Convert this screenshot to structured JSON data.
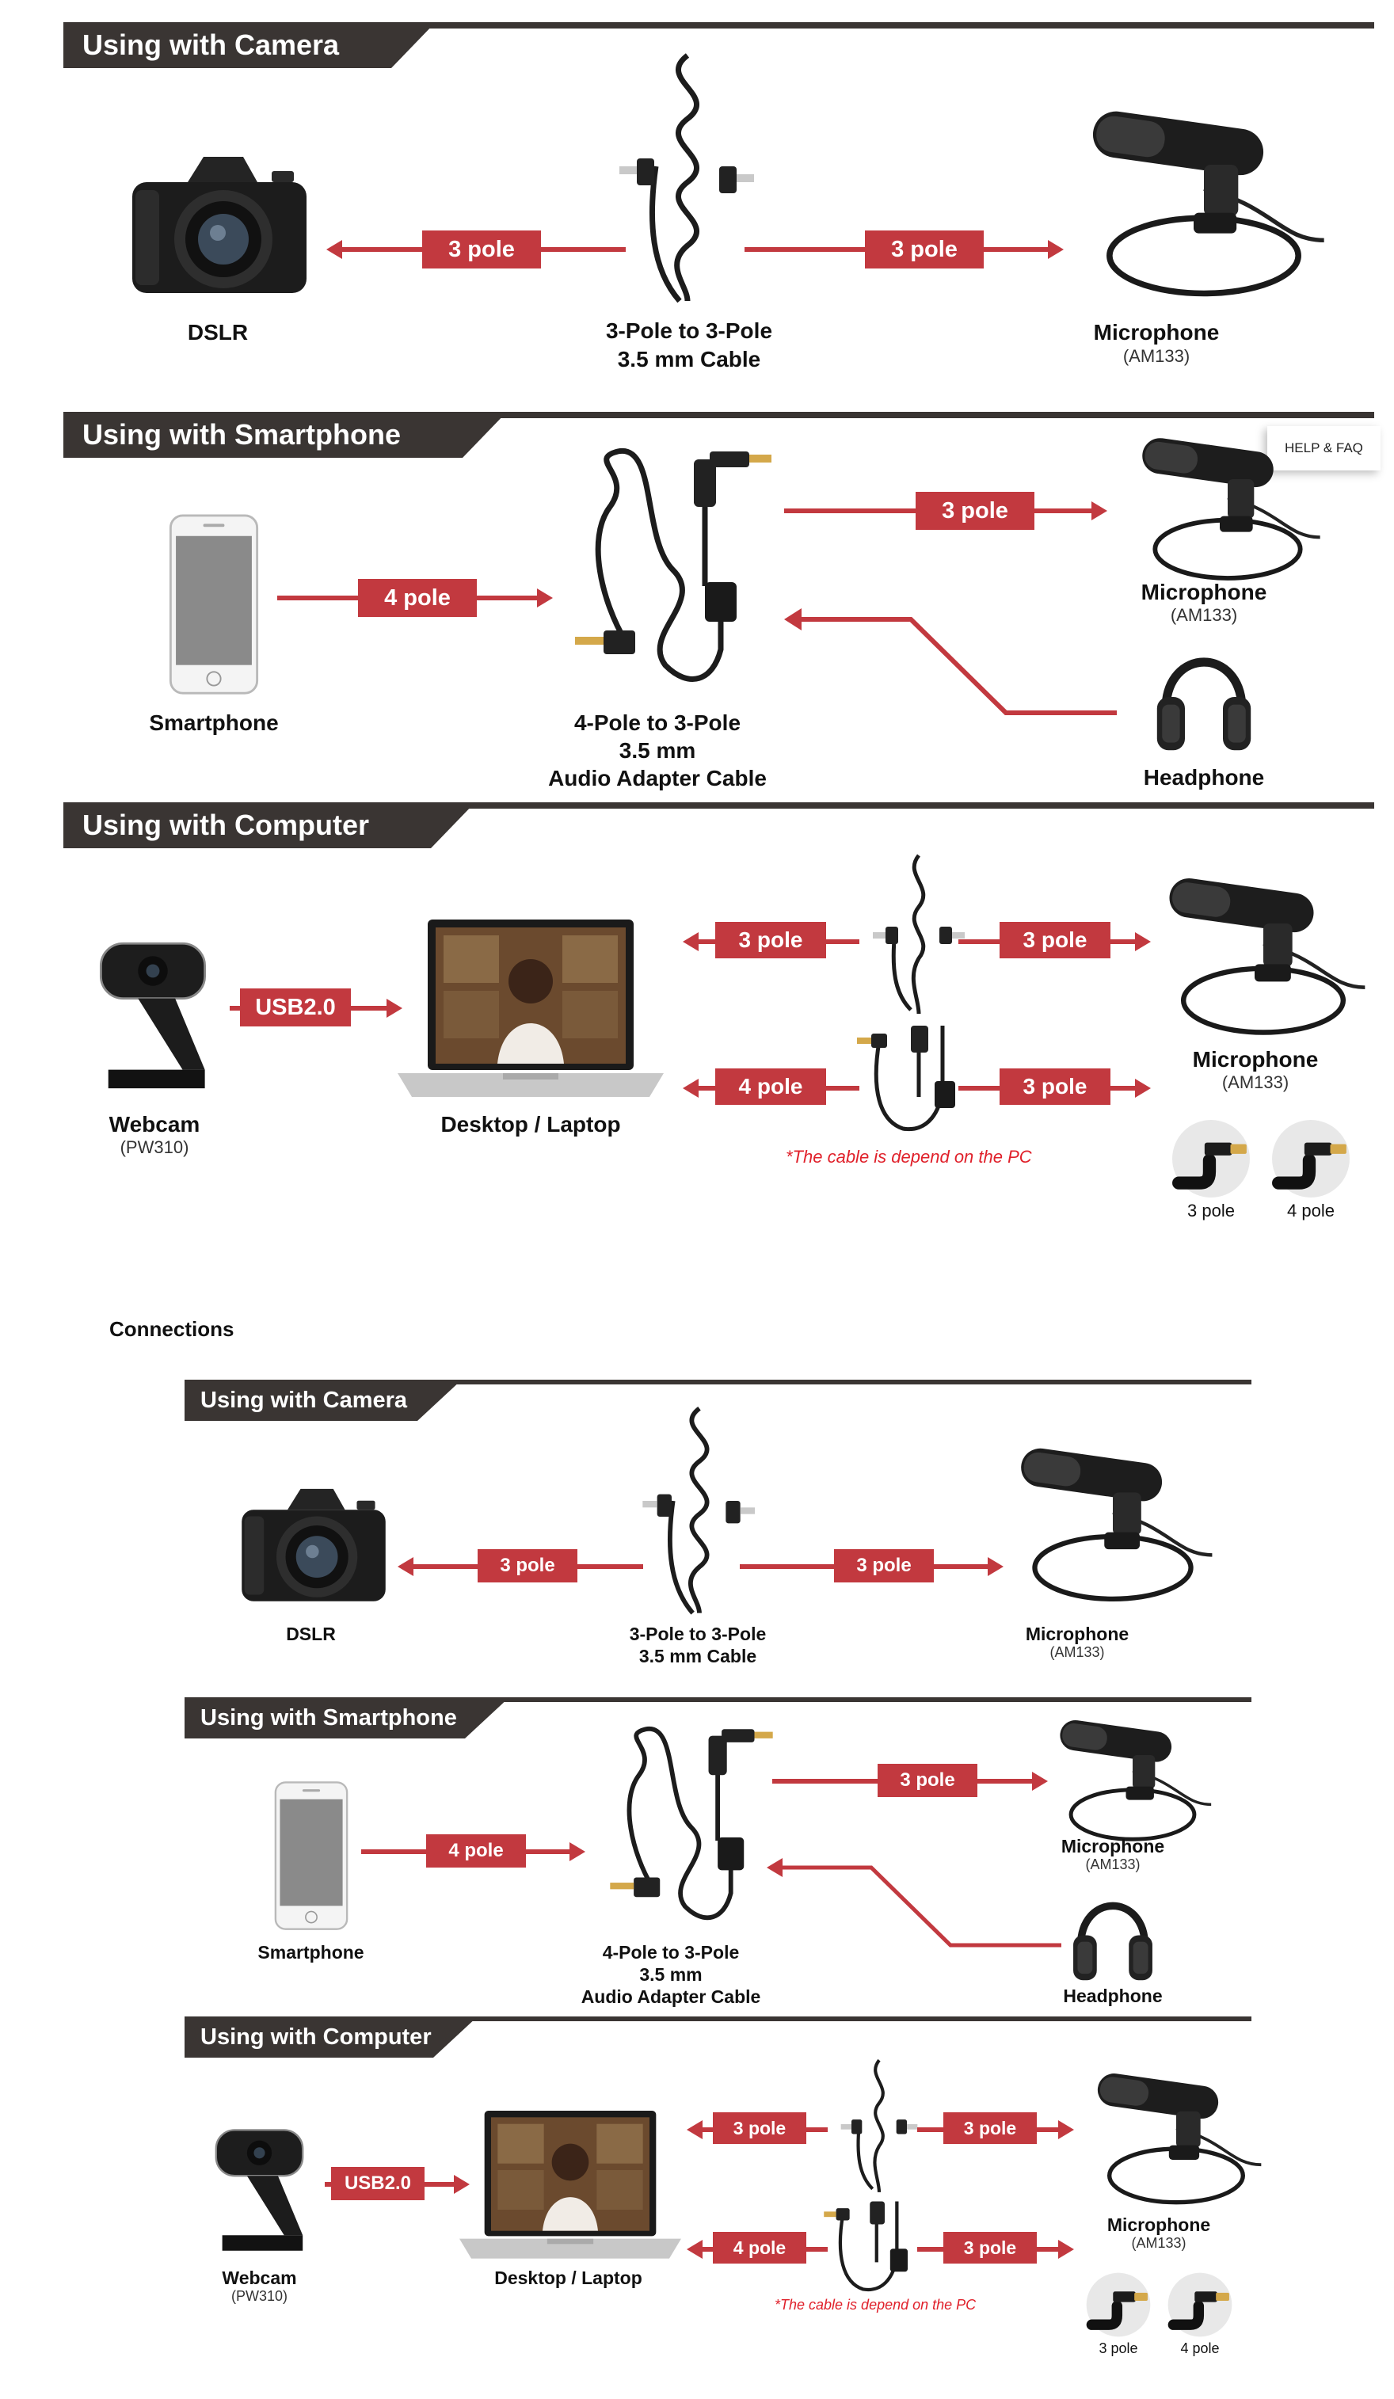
{
  "top": {
    "camera": {
      "title": "Using with Camera",
      "left_device": "DSLR",
      "cable_line1": "3-Pole to 3-Pole",
      "cable_line2": "3.5 mm Cable",
      "tag_left": "3 pole",
      "tag_right": "3 pole",
      "mic": "Microphone",
      "mic_model": "(AM133)"
    },
    "smartphone": {
      "title": "Using with Smartphone",
      "left_device": "Smartphone",
      "tag_in": "4 pole",
      "tag_out": "3 pole",
      "cable_line1": "4-Pole to 3-Pole",
      "cable_line2": "3.5 mm",
      "cable_line3": "Audio Adapter Cable",
      "mic": "Microphone",
      "mic_model": "(AM133)",
      "headphone": "Headphone",
      "help": "HELP & FAQ"
    },
    "computer": {
      "title": "Using with Computer",
      "webcam": "Webcam",
      "webcam_model": "(PW310)",
      "usb": "USB2.0",
      "laptop": "Desktop / Laptop",
      "tag_a": "3 pole",
      "tag_b": "3 pole",
      "tag_c": "4 pole",
      "tag_d": "3 pole",
      "note": "*The cable is depend on the PC",
      "mic": "Microphone",
      "mic_model": "(AM133)",
      "plug_3": "3 pole",
      "plug_4": "4 pole"
    }
  },
  "connections_label": "Connections",
  "bottom": {
    "camera": {
      "title": "Using with Camera",
      "left_device": "DSLR",
      "cable_line1": "3-Pole to 3-Pole",
      "cable_line2": "3.5 mm Cable",
      "tag_left": "3 pole",
      "tag_right": "3 pole",
      "mic": "Microphone",
      "mic_model": "(AM133)"
    },
    "smartphone": {
      "title": "Using with Smartphone",
      "left_device": "Smartphone",
      "tag_in": "4 pole",
      "tag_out": "3 pole",
      "cable_line1": "4-Pole to 3-Pole",
      "cable_line2": "3.5 mm",
      "cable_line3": "Audio Adapter Cable",
      "mic": "Microphone",
      "mic_model": "(AM133)",
      "headphone": "Headphone"
    },
    "computer": {
      "title": "Using with Computer",
      "webcam": "Webcam",
      "webcam_model": "(PW310)",
      "usb": "USB2.0",
      "laptop": "Desktop / Laptop",
      "tag_a": "3 pole",
      "tag_b": "3 pole",
      "tag_c": "4 pole",
      "tag_d": "3 pole",
      "note": "*The cable is depend on the PC",
      "mic": "Microphone",
      "mic_model": "(AM133)",
      "plug_3": "3 pole",
      "plug_4": "4 pole"
    }
  },
  "colors": {
    "accent": "#c2393f",
    "header": "#3a3533",
    "note": "#e0202a"
  }
}
